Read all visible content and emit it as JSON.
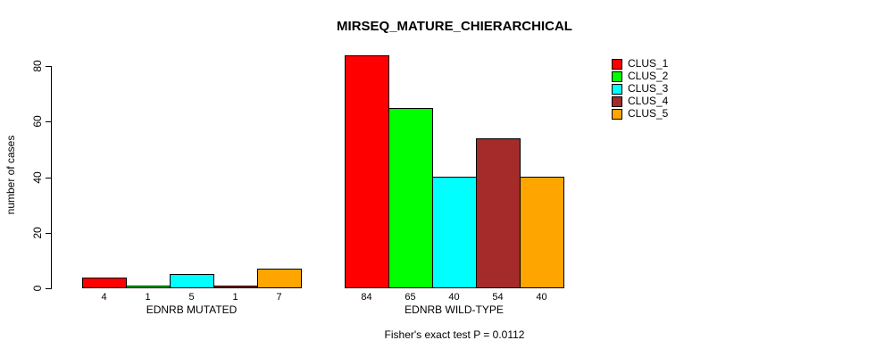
{
  "title": "MIRSEQ_MATURE_CHIERARCHICAL",
  "annotation": "Fisher's exact test P = 0.0112",
  "y_axis_label": "number of cases",
  "colors": {
    "background": "#FFFFFF",
    "axis": "#000000",
    "text": "#000000"
  },
  "chart_data": {
    "type": "bar",
    "title": "MIRSEQ_MATURE_CHIERARCHICAL",
    "xlabel": "",
    "ylabel": "number of cases",
    "annotation": "Fisher's exact test P = 0.0112",
    "categories": [
      "EDNRB MUTATED",
      "EDNRB WILD-TYPE"
    ],
    "series": [
      {
        "name": "CLUS_1",
        "color": "#FF0000",
        "values": [
          4,
          84
        ]
      },
      {
        "name": "CLUS_2",
        "color": "#00FF00",
        "values": [
          1,
          65
        ]
      },
      {
        "name": "CLUS_3",
        "color": "#00FFFF",
        "values": [
          5,
          40
        ]
      },
      {
        "name": "CLUS_4",
        "color": "#A52A2A",
        "values": [
          1,
          54
        ]
      },
      {
        "name": "CLUS_5",
        "color": "#FFA500",
        "values": [
          7,
          40
        ]
      }
    ],
    "yticks": [
      0,
      20,
      40,
      60,
      80
    ],
    "ylim": [
      0,
      84
    ],
    "grid": false,
    "show_value_labels": true,
    "legend": {
      "position": "topright",
      "entries": [
        "CLUS_1",
        "CLUS_2",
        "CLUS_3",
        "CLUS_4",
        "CLUS_5"
      ]
    }
  }
}
